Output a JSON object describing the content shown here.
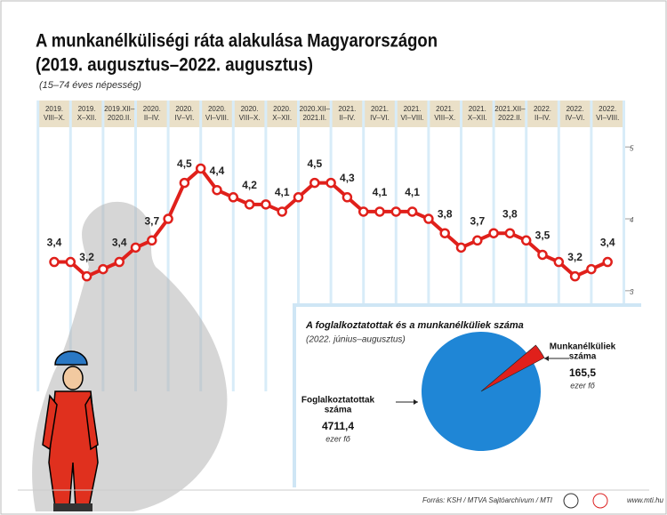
{
  "title": "A munkanélküliségi ráta alakulása Magyarországon",
  "subtitle": "(2019. augusztus–2022. augusztus)",
  "note": "(15–74 éves népesség)",
  "chart_data": [
    {
      "type": "line",
      "categories": [
        "2019.\nVIII–X.",
        null,
        "2019.\nX–XII.",
        null,
        "2019.XII–\n2020.II.",
        null,
        "2020.\nII–IV.",
        null,
        "2020.\nIV–VI.",
        null,
        "2020.\nVI–VIII.",
        null,
        "2020.\nVIII–X.",
        null,
        "2020.\nX–XII.",
        null,
        "2020.XII–\n2021.II.",
        null,
        "2021.\nII–IV.",
        null,
        "2021.\nIV–VI.",
        null,
        "2021.\nVI–VIII.",
        null,
        "2021.\nVIII–X.",
        null,
        "2021.\nX–XII.",
        null,
        "2021.XII–\n2022.II.",
        null,
        "2022.\nII–IV.",
        null,
        "2022.\nIV–VI.",
        null,
        "2022.\nVI–VIII."
      ],
      "values": [
        3.4,
        3.4,
        3.2,
        3.3,
        3.4,
        3.6,
        3.7,
        4.0,
        4.5,
        4.7,
        4.4,
        4.3,
        4.2,
        4.2,
        4.1,
        4.3,
        4.5,
        4.5,
        4.3,
        4.1,
        4.1,
        4.1,
        4.1,
        4.0,
        3.8,
        3.6,
        3.7,
        3.8,
        3.8,
        3.7,
        3.5,
        3.4,
        3.2,
        3.3,
        3.4
      ],
      "value_labels": [
        "3,4",
        null,
        "3,2",
        null,
        "3,4",
        null,
        "3,7",
        null,
        "4,5",
        null,
        "4,4",
        null,
        "4,2",
        null,
        "4,1",
        null,
        "4,5",
        null,
        "4,3",
        null,
        "4,1",
        null,
        "4,1",
        null,
        "3,8",
        null,
        "3,7",
        null,
        "3,8",
        null,
        "3,5",
        null,
        "3,2",
        null,
        "3,4"
      ],
      "color": "#e0201b",
      "ylim": [
        1.6,
        5.25
      ],
      "yticks": [
        3,
        4,
        5
      ]
    },
    {
      "type": "pie",
      "title": "A foglalkoztatottak és a munkanélküliek száma",
      "subtitle": "(2022. június–augusztus)",
      "categories": [
        "Foglalkoztatottak\nszáma",
        "Munkanélküliek\nszáma"
      ],
      "values": [
        4711.4,
        165.5
      ],
      "value_labels": [
        "4711,4",
        "165,5"
      ],
      "unit": "ezer fő",
      "colors": [
        "#1f86d6",
        "#e0201b"
      ]
    }
  ],
  "footer": {
    "source": "Forrás: KSH / MTVA Sajtóarchívum / MTI",
    "url": "www.mti.hu"
  }
}
